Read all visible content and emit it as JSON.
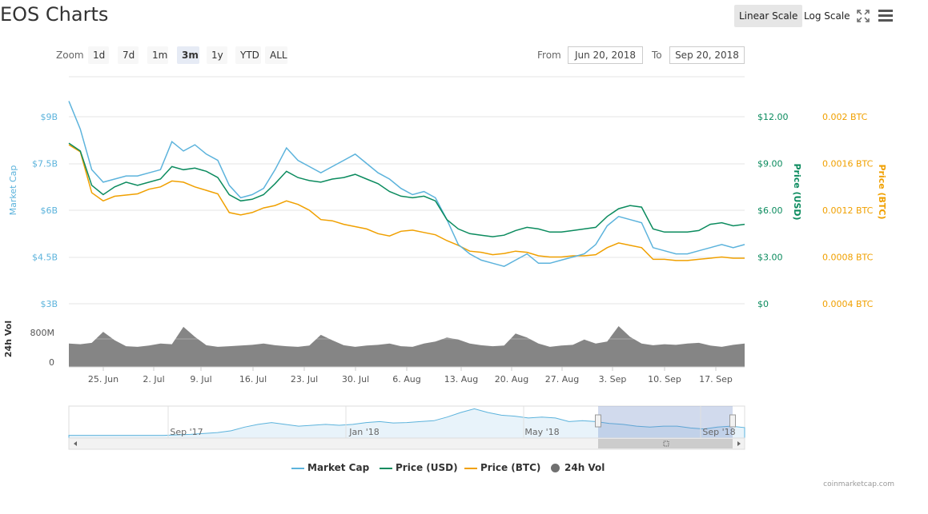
{
  "header": {
    "title": "EOS Charts",
    "linear_scale": "Linear Scale",
    "log_scale": "Log Scale"
  },
  "zoom": {
    "label": "Zoom",
    "buttons": [
      "1d",
      "7d",
      "1m",
      "3m",
      "1y",
      "YTD",
      "ALL"
    ],
    "active": "3m"
  },
  "range": {
    "from_label": "From",
    "from_value": "Jun 20, 2018",
    "to_label": "To",
    "to_value": "Sep 20, 2018"
  },
  "credit": "coinmarketcap.com",
  "colors": {
    "market_cap": "#5cb3dc",
    "price_usd": "#0b8b5e",
    "price_btc": "#f0a000",
    "volume": "#707070"
  },
  "chart_data": {
    "type": "line",
    "x_ticks": [
      "25. Jun",
      "2. Jul",
      "9. Jul",
      "16. Jul",
      "23. Jul",
      "30. Jul",
      "6. Aug",
      "13. Aug",
      "20. Aug",
      "27. Aug",
      "3. Sep",
      "10. Sep",
      "17. Sep"
    ],
    "x_range": [
      "Jun 20, 2018",
      "Sep 20, 2018"
    ],
    "axes": {
      "market_cap": {
        "label": "Market Cap",
        "ticks": [
          "$3B",
          "$4.5B",
          "$6B",
          "$7.5B",
          "$9B"
        ],
        "range": [
          3,
          9
        ]
      },
      "price_usd": {
        "label": "Price (USD)",
        "ticks": [
          "$0",
          "$3.00",
          "$6.00",
          "$9.00",
          "$12.00"
        ],
        "range": [
          0,
          12
        ]
      },
      "price_btc": {
        "label": "Price (BTC)",
        "ticks": [
          "0.0004 BTC",
          "0.0008 BTC",
          "0.0012 BTC",
          "0.0016 BTC",
          "0.002 BTC"
        ],
        "range": [
          0.0004,
          0.002
        ]
      },
      "volume": {
        "label": "24h Vol",
        "ticks": [
          "0",
          "800M"
        ],
        "range": [
          0,
          1700
        ]
      }
    },
    "series": [
      {
        "name": "Market Cap",
        "unit": "B USD",
        "values": [
          9.5,
          8.6,
          7.3,
          6.9,
          7.0,
          7.1,
          7.1,
          7.2,
          7.3,
          8.2,
          7.9,
          8.1,
          7.8,
          7.6,
          6.8,
          6.4,
          6.5,
          6.7,
          7.3,
          8.0,
          7.6,
          7.4,
          7.2,
          7.4,
          7.6,
          7.8,
          7.5,
          7.2,
          7.0,
          6.7,
          6.5,
          6.6,
          6.4,
          5.7,
          4.9,
          4.6,
          4.4,
          4.3,
          4.2,
          4.4,
          4.6,
          4.3,
          4.3,
          4.4,
          4.5,
          4.6,
          4.9,
          5.5,
          5.8,
          5.7,
          5.6,
          4.8,
          4.7,
          4.6,
          4.6,
          4.7,
          4.8,
          4.9,
          4.8,
          4.9
        ]
      },
      {
        "name": "Price (USD)",
        "unit": "USD",
        "values": [
          10.3,
          9.8,
          7.6,
          7.0,
          7.5,
          7.8,
          7.6,
          7.8,
          8.0,
          8.8,
          8.6,
          8.7,
          8.5,
          8.1,
          7.0,
          6.6,
          6.7,
          7.0,
          7.7,
          8.5,
          8.1,
          7.9,
          7.8,
          8.0,
          8.1,
          8.3,
          8.0,
          7.7,
          7.2,
          6.9,
          6.8,
          6.9,
          6.6,
          5.4,
          4.8,
          4.5,
          4.4,
          4.3,
          4.4,
          4.7,
          4.9,
          4.8,
          4.6,
          4.6,
          4.7,
          4.8,
          4.9,
          5.6,
          6.1,
          6.3,
          6.2,
          4.8,
          4.6,
          4.6,
          4.6,
          4.7,
          5.1,
          5.2,
          5.0,
          5.1
        ]
      },
      {
        "name": "Price (BTC)",
        "unit": "BTC",
        "values": [
          0.00176,
          0.0017,
          0.00135,
          0.00128,
          0.00132,
          0.00133,
          0.00134,
          0.00138,
          0.0014,
          0.00145,
          0.00144,
          0.0014,
          0.00137,
          0.00134,
          0.00118,
          0.00116,
          0.00118,
          0.00122,
          0.00124,
          0.00128,
          0.00125,
          0.0012,
          0.00112,
          0.00111,
          0.00108,
          0.00106,
          0.00104,
          0.001,
          0.00098,
          0.00102,
          0.00103,
          0.00101,
          0.00099,
          0.00094,
          0.0009,
          0.00085,
          0.00084,
          0.00082,
          0.00083,
          0.00085,
          0.00084,
          0.00081,
          0.0008,
          0.0008,
          0.00081,
          0.00081,
          0.00082,
          0.00088,
          0.00092,
          0.0009,
          0.00088,
          0.00078,
          0.00078,
          0.00077,
          0.00077,
          0.00078,
          0.00079,
          0.0008,
          0.00079,
          0.00079
        ]
      },
      {
        "name": "24h Vol",
        "unit": "M USD",
        "values": [
          700,
          680,
          720,
          1050,
          800,
          620,
          600,
          640,
          700,
          680,
          1200,
          900,
          650,
          600,
          620,
          640,
          660,
          700,
          650,
          620,
          600,
          640,
          960,
          800,
          650,
          600,
          640,
          660,
          700,
          620,
          600,
          700,
          760,
          880,
          820,
          700,
          650,
          620,
          640,
          1000,
          880,
          700,
          600,
          640,
          660,
          820,
          700,
          760,
          1220,
          900,
          700,
          650,
          680,
          660,
          700,
          720,
          640,
          600,
          660,
          700
        ]
      }
    ],
    "navigator": {
      "x_ticks": [
        "Sep '17",
        "Jan '18",
        "May '18",
        "Sep '18"
      ],
      "values": [
        0.6,
        0.6,
        0.6,
        0.6,
        0.6,
        0.6,
        0.6,
        0.6,
        0.7,
        0.8,
        1.0,
        1.2,
        1.6,
        2.4,
        3.0,
        3.4,
        3.0,
        2.6,
        2.8,
        3.0,
        2.8,
        3.0,
        3.4,
        3.6,
        3.3,
        3.4,
        3.6,
        3.8,
        4.6,
        5.6,
        6.4,
        5.6,
        5.0,
        4.8,
        4.4,
        4.6,
        4.4,
        3.6,
        3.8,
        3.6,
        3.2,
        3.0,
        2.6,
        2.4,
        2.6,
        2.6,
        2.2,
        2.0,
        2.4,
        2.6,
        2.3
      ]
    },
    "legend": [
      "Market Cap",
      "Price (USD)",
      "Price (BTC)",
      "24h Vol"
    ]
  }
}
